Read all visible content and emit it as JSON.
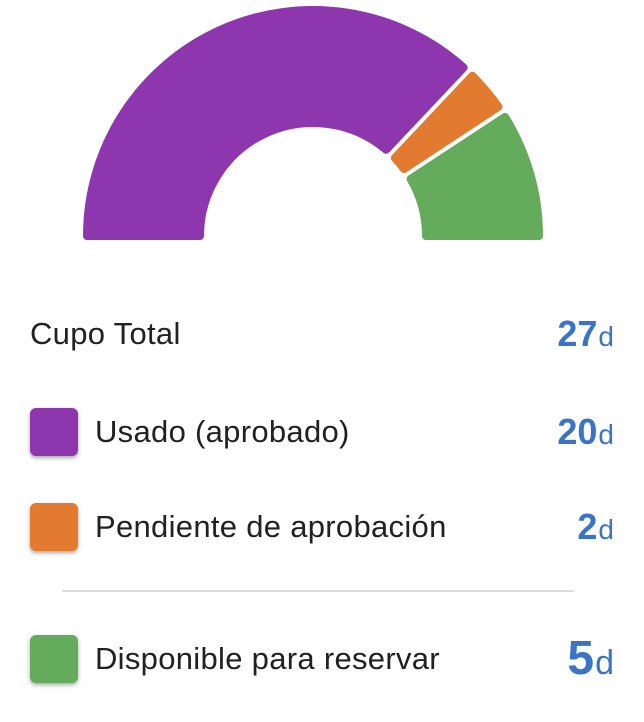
{
  "gauge": {
    "segments": [
      {
        "name": "used",
        "value": 20,
        "color": "#8e36ae"
      },
      {
        "name": "pending",
        "value": 2,
        "color": "#e27a30"
      },
      {
        "name": "available",
        "value": 5,
        "color": "#64ab5c"
      }
    ],
    "total": 27
  },
  "total_row": {
    "label": "Cupo Total",
    "value": "27",
    "unit": "d"
  },
  "used_row": {
    "label": "Usado (aprobado)",
    "value": "20",
    "unit": "d",
    "color": "#8e36ae"
  },
  "pending_row": {
    "label": "Pendiente de aprobación",
    "value": "2",
    "unit": "d",
    "color": "#e27a30"
  },
  "available_row": {
    "label": "Disponible para reservar",
    "value": "5",
    "unit": "d",
    "color": "#64ab5c"
  },
  "accent_color": "#3a74c4"
}
